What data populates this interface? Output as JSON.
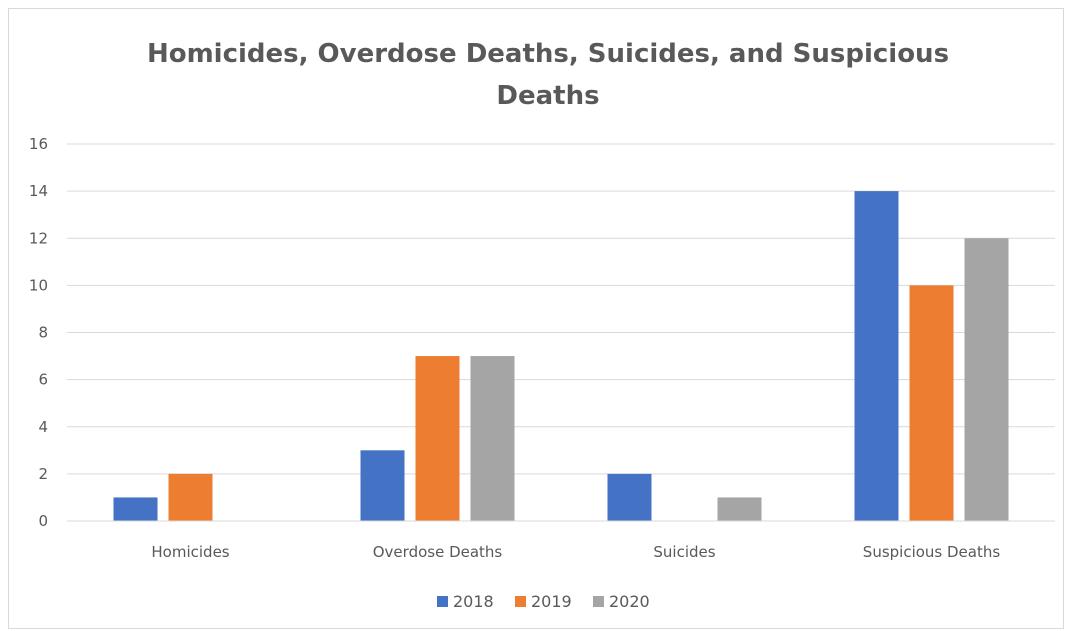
{
  "chart_data": {
    "type": "bar",
    "title_lines": [
      "Homicides, Overdose Deaths, Suicides, and Suspicious",
      "Deaths"
    ],
    "categories": [
      "Homicides",
      "Overdose Deaths",
      "Suicides",
      "Suspicious Deaths"
    ],
    "series": [
      {
        "name": "2018",
        "color": "#4472c4",
        "values": [
          1,
          3,
          2,
          14
        ]
      },
      {
        "name": "2019",
        "color": "#ed7d31",
        "values": [
          2,
          7,
          0,
          10
        ]
      },
      {
        "name": "2020",
        "color": "#a5a5a5",
        "values": [
          0,
          7,
          1,
          12
        ]
      }
    ],
    "ylim": [
      0,
      16
    ],
    "yticks": [
      0,
      2,
      4,
      6,
      8,
      10,
      12,
      14,
      16
    ],
    "grid": true,
    "legend": "bottom"
  }
}
